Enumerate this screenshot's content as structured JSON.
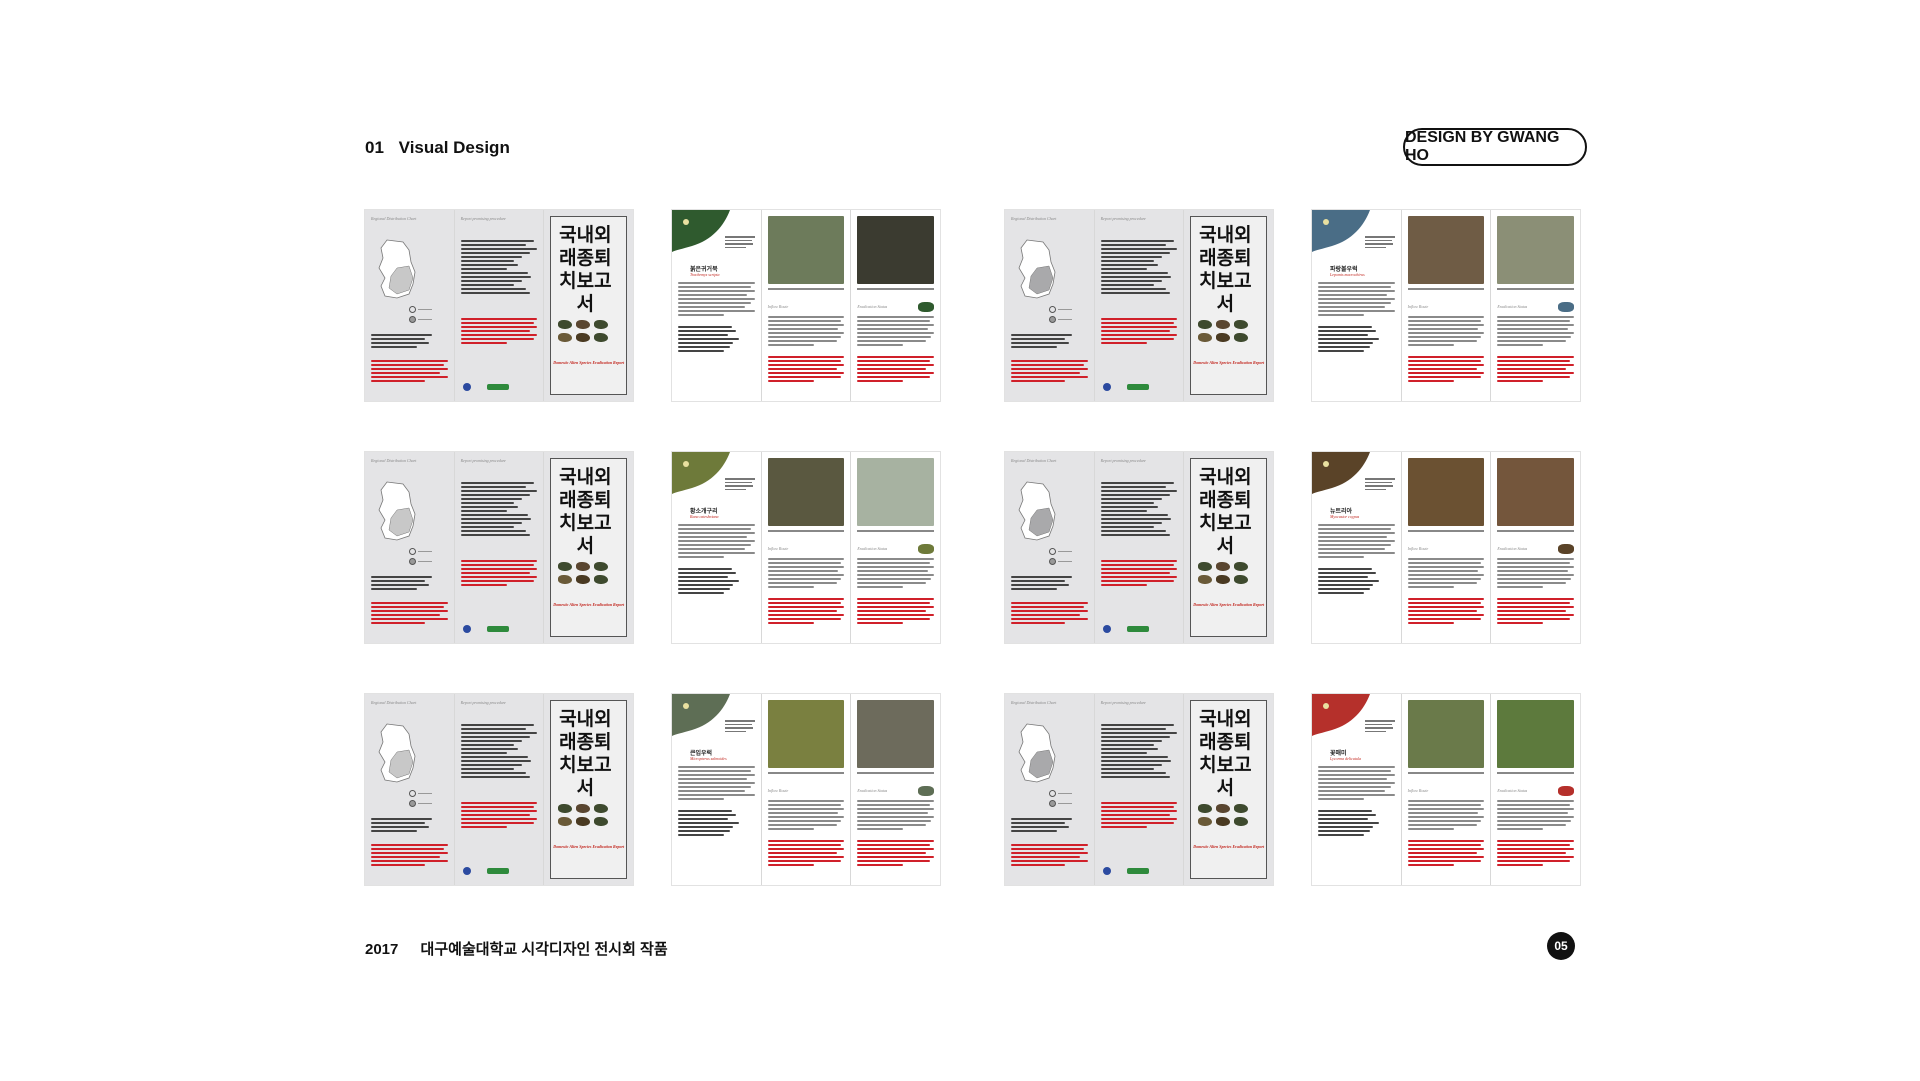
{
  "header": {
    "section_number": "01",
    "section_title": "Visual Design",
    "designer": "DESIGN BY GWANG HO"
  },
  "footer": {
    "year": "2017",
    "exhibition": "대구예술대학교 시각디자인 전시회 작품",
    "page": "05"
  },
  "report": {
    "title_korean": "국내외래종퇴치보고서",
    "title_english": "Domestic Alien Species Eradication Report",
    "map_title": "Regional Distribution Chart",
    "report_section": "Report promising procedure"
  },
  "species": [
    {
      "name": "붉은귀거북",
      "scientific": "Trachemys scripta",
      "colors": [
        "#2f5a2e",
        "#6d7b5b",
        "#3b3b30"
      ]
    },
    {
      "name": "파랑볼우럭",
      "scientific": "Lepomis macrochirus",
      "colors": [
        "#4a6d86",
        "#6f5c45",
        "#8b8f76"
      ]
    },
    {
      "name": "황소개구리",
      "scientific": "Rana catesbeiana",
      "colors": [
        "#6e7a3a",
        "#5a5840",
        "#a7b2a1"
      ]
    },
    {
      "name": "뉴트리아",
      "scientific": "Myocastor coypus",
      "colors": [
        "#5a4328",
        "#6b5132",
        "#74563c"
      ]
    },
    {
      "name": "큰입우럭",
      "scientific": "Micropterus salmoides",
      "colors": [
        "#5e6e55",
        "#7a8040",
        "#6d6b5c"
      ]
    },
    {
      "name": "꽃매미",
      "scientific": "Lycorma delicatula",
      "colors": [
        "#b5302b",
        "#6a7a4a",
        "#5d7a3d"
      ]
    }
  ],
  "section_labels": {
    "inflow": "Inflow Route",
    "eradication": "Eradication Status"
  }
}
